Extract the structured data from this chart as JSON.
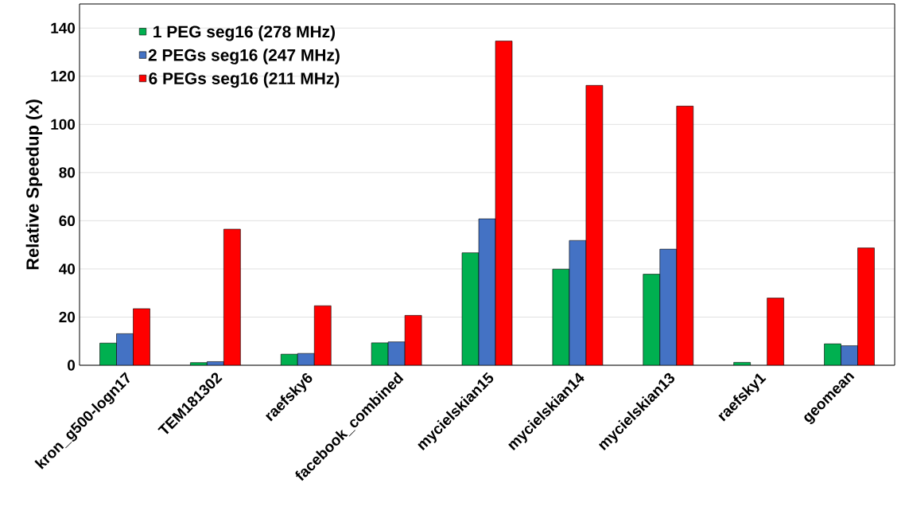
{
  "chart_data": {
    "type": "bar",
    "ylabel": "Relative Speedup (x)",
    "categories": [
      "kron_g500-logn17",
      "TEM181302",
      "raefsky6",
      "facebook_combined",
      "mycielskian15",
      "mycielskian14",
      "mycielskian13",
      "raefsky1",
      "geomean"
    ],
    "series": [
      {
        "name": "1 PEG seg16 (278 MHz)",
        "color": "#00b050",
        "values": [
          9.2,
          1.1,
          4.6,
          9.3,
          46.7,
          39.9,
          37.8,
          1.2,
          8.9
        ]
      },
      {
        "name": "2 PEGs seg16 (247 MHz)",
        "color": "#4472c4",
        "values": [
          13.1,
          1.5,
          4.9,
          9.7,
          60.8,
          51.8,
          48.2,
          null,
          8.1
        ]
      },
      {
        "name": "6 PEGs seg16 (211 MHz)",
        "color": "#ff0000",
        "values": [
          23.5,
          56.5,
          24.7,
          20.7,
          134.6,
          116.2,
          107.6,
          27.9,
          48.7
        ]
      }
    ],
    "ylim": [
      0,
      150
    ],
    "yticks": [
      0,
      20,
      40,
      60,
      80,
      100,
      120,
      140
    ],
    "grid": "y",
    "legend": "top left"
  }
}
